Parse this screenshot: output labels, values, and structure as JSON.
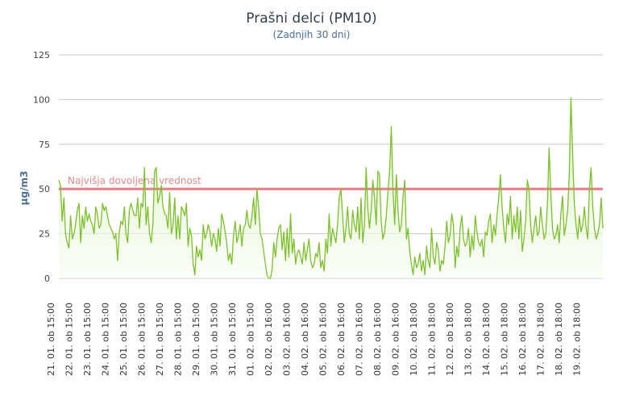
{
  "chart_data": {
    "type": "area",
    "title": "Prašni delci (PM10)",
    "subtitle": "(Zadnjih 30 dni)",
    "ylabel": "µg/m3",
    "xlabel": "",
    "ylim": [
      0,
      125
    ],
    "yticks": [
      0,
      25,
      50,
      75,
      100,
      125
    ],
    "grid": true,
    "legend": "none",
    "colors": {
      "line": "#7cc02c",
      "area_top": "#d3efb9",
      "area_bottom": "#f7fcf2",
      "limit_line": "#e57f85",
      "grid": "#c8c8c8"
    },
    "limit": {
      "value": 50,
      "label": "Najvišja dovoljena vrednost"
    },
    "x_tick_labels": [
      "21. 01. ob 15:00",
      "22. 01. ob 15:00",
      "23. 01. ob 15:00",
      "24. 01. ob 15:00",
      "25. 01. ob 15:00",
      "26. 01. ob 15:00",
      "27. 01. ob 15:00",
      "28. 01. ob 15:00",
      "29. 01. ob 15:00",
      "30. 01. ob 15:00",
      "31. 01. ob 15:00",
      "01. 02. ob 15:00",
      "02. 02. ob 16:00",
      "03. 02. ob 16:00",
      "04. 02. ob 16:00",
      "05. 02. ob 16:00",
      "06. 02. ob 16:00",
      "07. 02. ob 16:00",
      "08. 02. ob 16:00",
      "09. 02. ob 16:00",
      "10. 02. ob 18:00",
      "11. 02. ob 18:00",
      "12. 02. ob 18:00",
      "13. 02. ob 18:00",
      "14. 02. ob 18:00",
      "15. 02. ob 18:00",
      "16. 02. ob 18:00",
      "17. 02. ob 18:00",
      "18. 02. ob 18:00",
      "19. 02. ob 18:00"
    ],
    "series": [
      {
        "values": [
          55,
          52,
          32,
          45,
          25,
          20,
          17,
          35,
          22,
          25,
          30,
          38,
          42,
          20,
          35,
          28,
          40,
          32,
          36,
          32,
          30,
          25,
          40,
          36,
          28,
          30,
          42,
          38,
          40,
          35,
          30,
          28,
          26,
          22,
          25,
          10,
          26,
          32,
          30,
          40,
          25,
          20,
          38,
          42,
          38,
          35,
          35,
          45,
          28,
          42,
          40,
          62,
          30,
          40,
          25,
          20,
          30,
          60,
          62,
          42,
          46,
          52,
          40,
          36,
          35,
          28,
          48,
          25,
          30,
          45,
          22,
          35,
          22,
          40,
          38,
          35,
          42,
          18,
          28,
          24,
          8,
          2,
          18,
          12,
          16,
          10,
          30,
          22,
          25,
          30,
          26,
          18,
          25,
          22,
          15,
          28,
          18,
          36,
          32,
          26,
          20,
          10,
          14,
          8,
          24,
          32,
          20,
          24,
          30,
          18,
          28,
          30,
          38,
          30,
          28,
          35,
          45,
          30,
          50,
          40,
          25,
          22,
          15,
          8,
          2,
          0,
          0,
          5,
          20,
          12,
          22,
          28,
          30,
          16,
          26,
          10,
          28,
          12,
          36,
          14,
          22,
          8,
          14,
          16,
          12,
          8,
          20,
          10,
          16,
          22,
          10,
          6,
          8,
          14,
          12,
          20,
          6,
          10,
          4,
          22,
          14,
          36,
          18,
          28,
          24,
          20,
          30,
          45,
          50,
          35,
          20,
          28,
          40,
          25,
          22,
          38,
          30,
          26,
          40,
          22,
          45,
          20,
          30,
          62,
          40,
          28,
          38,
          55,
          45,
          30,
          60,
          58,
          32,
          22,
          26,
          35,
          48,
          60,
          85,
          50,
          30,
          58,
          38,
          26,
          30,
          46,
          55,
          22,
          28,
          15,
          8,
          2,
          12,
          6,
          8,
          14,
          4,
          10,
          2,
          18,
          10,
          6,
          28,
          12,
          8,
          20,
          16,
          4,
          10,
          8,
          18,
          32,
          20,
          24,
          36,
          30,
          6,
          18,
          12,
          28,
          35,
          22,
          18,
          20,
          28,
          12,
          24,
          16,
          35,
          26,
          20,
          18,
          22,
          12,
          26,
          24,
          32,
          36,
          20,
          30,
          24,
          36,
          45,
          58,
          40,
          28,
          20,
          36,
          30,
          46,
          22,
          35,
          26,
          40,
          22,
          38,
          15,
          22,
          32,
          55,
          50,
          30,
          20,
          28,
          35,
          24,
          26,
          40,
          30,
          22,
          25,
          42,
          73,
          48,
          28,
          22,
          24,
          30,
          20,
          36,
          46,
          24,
          30,
          38,
          58,
          101,
          70,
          42,
          30,
          22,
          35,
          26,
          30,
          40,
          28,
          22,
          50,
          62,
          40,
          28,
          22,
          25,
          30,
          45,
          28
        ]
      }
    ]
  }
}
